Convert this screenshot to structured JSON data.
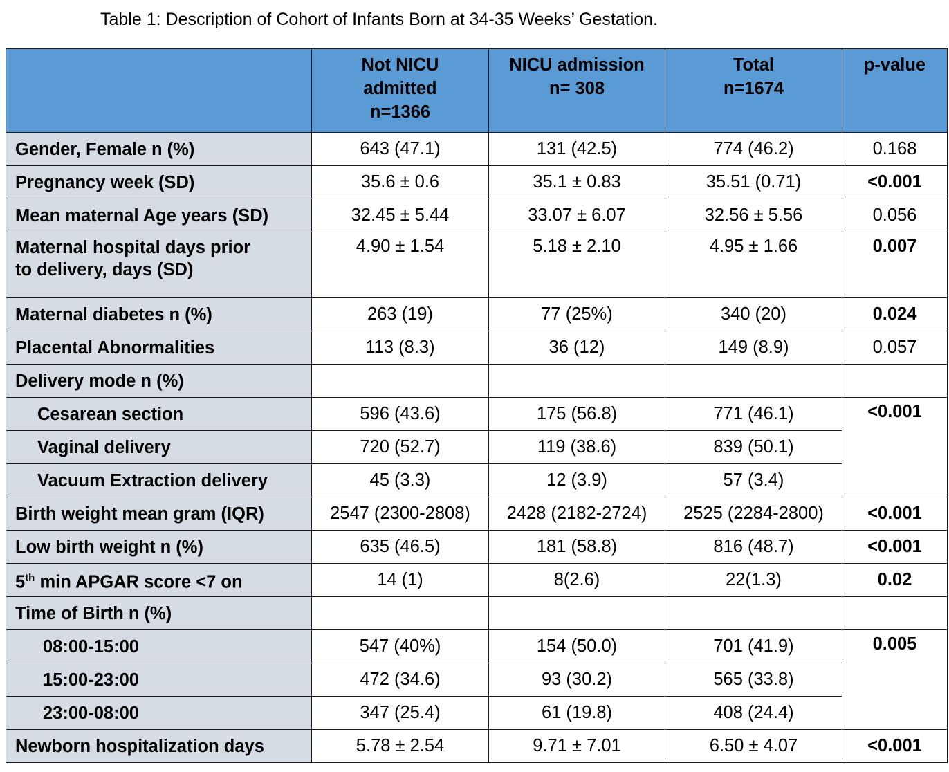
{
  "caption": "Table 1: Description of Cohort of Infants Born at 34-35 Weeks’ Gestation.",
  "header": {
    "col1": [
      "Not NICU",
      "admitted",
      "n=1366"
    ],
    "col2": [
      "NICU admission",
      "n= 308"
    ],
    "col3": [
      "Total",
      "n=1674"
    ],
    "col4": [
      "p-value"
    ]
  },
  "rows": [
    {
      "label": "Gender, Female n (%)",
      "v": [
        "643 (47.1)",
        "131 (42.5)",
        "774 (46.2)"
      ],
      "p": "0.168"
    },
    {
      "label": "Pregnancy week (SD)",
      "v": [
        "35.6 ± 0.6",
        "35.1 ± 0.83",
        "35.51 (0.71)"
      ],
      "p": "<0.001"
    },
    {
      "label": "Mean maternal Age years (SD)",
      "v": [
        "32.45 ± 5.44",
        "33.07 ± 6.07",
        "32.56 ± 5.56"
      ],
      "p": "0.056"
    },
    {
      "label_lines": [
        "Maternal hospital days prior",
        "to delivery, days (SD)"
      ],
      "v": [
        "4.90 ± 1.54",
        "5.18 ± 2.10",
        "4.95 ± 1.66"
      ],
      "p": "0.007"
    },
    {
      "label": "Maternal diabetes n (%)",
      "v": [
        "263 (19)",
        "77 (25%)",
        "340 (20)"
      ],
      "p": "0.024"
    },
    {
      "label": "Placental Abnormalities",
      "v": [
        "113 (8.3)",
        "36 (12)",
        "149 (8.9)"
      ],
      "p": "0.057"
    },
    {
      "label": "Delivery mode n (%)"
    },
    {
      "label": "Cesarean section",
      "v": [
        "596 (43.6)",
        "175 (56.8)",
        "771 (46.1)"
      ],
      "p": "<0.001"
    },
    {
      "label": "Vaginal delivery",
      "v": [
        "720 (52.7)",
        "119 (38.6)",
        "839 (50.1)"
      ]
    },
    {
      "label": "Vacuum Extraction delivery",
      "v": [
        "45 (3.3)",
        "12 (3.9)",
        "57 (3.4)"
      ]
    },
    {
      "label": "Birth weight mean gram (IQR)",
      "v": [
        "2547 (2300-2808)",
        "2428 (2182-2724)",
        "2525 (2284-2800)"
      ],
      "p": "<0.001"
    },
    {
      "label": "Low birth weight n (%)",
      "v": [
        "635 (46.5)",
        "181 (58.8)",
        "816 (48.7)"
      ],
      "p": "<0.001"
    },
    {
      "label_pre": "5",
      "label_sup": "th",
      "label_post": " min APGAR score <7 on",
      "v": [
        "14 (1)",
        "8(2.6)",
        "22(1.3)"
      ],
      "p": "0.02"
    },
    {
      "label": "Time of Birth n (%)"
    },
    {
      "label": "08:00-15:00",
      "v": [
        "547 (40%)",
        "154 (50.0)",
        "701 (41.9)"
      ],
      "p": "0.005"
    },
    {
      "label": "15:00-23:00",
      "v": [
        "472 (34.6)",
        "93 (30.2)",
        "565 (33.8)"
      ]
    },
    {
      "label": "23:00-08:00",
      "v": [
        "347 (25.4)",
        "61 (19.8)",
        "408 (24.4)"
      ]
    },
    {
      "label": "Newborn hospitalization days",
      "v": [
        "5.78 ± 2.54",
        "9.71 ± 7.01",
        "6.50 ± 4.07"
      ],
      "p": "<0.001"
    }
  ]
}
